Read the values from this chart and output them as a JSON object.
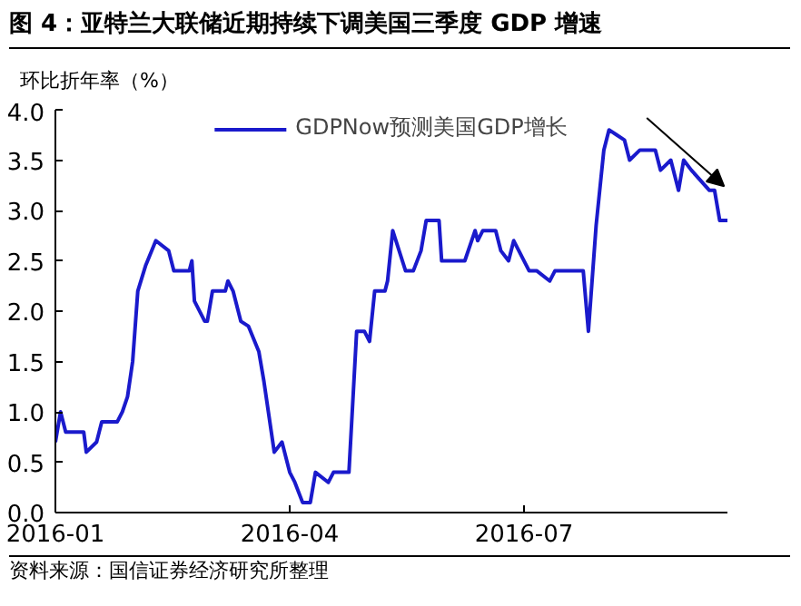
{
  "chart_data": {
    "type": "line",
    "title": "图 4：亚特兰大联储近期持续下调美国三季度 GDP 增速",
    "ylabel": "环比折年率（%）",
    "annotations": [
      "资料来源：国信证券经济研究所整理"
    ],
    "x": [
      "2016-01-01",
      "2016-01-03",
      "2016-01-05",
      "2016-01-12",
      "2016-01-13",
      "2016-01-17",
      "2016-01-19",
      "2016-01-25",
      "2016-01-27",
      "2016-01-29",
      "2016-01-31",
      "2016-02-02",
      "2016-02-05",
      "2016-02-09",
      "2016-02-14",
      "2016-02-16",
      "2016-02-22",
      "2016-02-23",
      "2016-02-24",
      "2016-02-28",
      "2016-02-29",
      "2016-03-02",
      "2016-03-07",
      "2016-03-08",
      "2016-03-10",
      "2016-03-13",
      "2016-03-16",
      "2016-03-20",
      "2016-03-22",
      "2016-03-26",
      "2016-03-29",
      "2016-04-01",
      "2016-04-03",
      "2016-04-06",
      "2016-04-09",
      "2016-04-11",
      "2016-04-16",
      "2016-04-18",
      "2016-04-24",
      "2016-04-27",
      "2016-04-30",
      "2016-05-02",
      "2016-05-04",
      "2016-05-08",
      "2016-05-09",
      "2016-05-11",
      "2016-05-16",
      "2016-05-19",
      "2016-05-22",
      "2016-05-24",
      "2016-05-29",
      "2016-05-30",
      "2016-06-08",
      "2016-06-12",
      "2016-06-13",
      "2016-06-15",
      "2016-06-20",
      "2016-06-22",
      "2016-06-25",
      "2016-06-27",
      "2016-07-03",
      "2016-07-06",
      "2016-07-11",
      "2016-07-13",
      "2016-07-24",
      "2016-07-26",
      "2016-07-29",
      "2016-08-01",
      "2016-08-03",
      "2016-08-06",
      "2016-08-09",
      "2016-08-11",
      "2016-08-15",
      "2016-08-21",
      "2016-08-23",
      "2016-08-27",
      "2016-08-30",
      "2016-09-01",
      "2016-09-04",
      "2016-09-11",
      "2016-09-13",
      "2016-09-15",
      "2016-09-18"
    ],
    "series": [
      {
        "name": "GDPNow预测美国GDP增长",
        "color": "#1a1acc",
        "values": [
          0.7,
          1.0,
          0.8,
          0.8,
          0.6,
          0.7,
          0.9,
          0.9,
          1.0,
          1.15,
          1.5,
          2.2,
          2.45,
          2.7,
          2.6,
          2.4,
          2.4,
          2.5,
          2.1,
          1.9,
          1.9,
          2.2,
          2.2,
          2.3,
          2.2,
          1.9,
          1.85,
          1.6,
          1.3,
          0.6,
          0.7,
          0.4,
          0.3,
          0.1,
          0.1,
          0.4,
          0.3,
          0.4,
          0.4,
          1.8,
          1.8,
          1.7,
          2.2,
          2.2,
          2.3,
          2.8,
          2.4,
          2.4,
          2.6,
          2.9,
          2.9,
          2.5,
          2.5,
          2.8,
          2.7,
          2.8,
          2.8,
          2.6,
          2.5,
          2.7,
          2.4,
          2.4,
          2.3,
          2.4,
          2.4,
          1.8,
          2.85,
          3.6,
          3.8,
          3.75,
          3.7,
          3.5,
          3.6,
          3.6,
          3.4,
          3.5,
          3.2,
          3.5,
          3.4,
          3.2,
          3.2,
          2.9,
          2.9
        ]
      }
    ],
    "xlim": [
      "2016-01-01",
      "2016-09-18"
    ],
    "xticks": [
      "2016-01",
      "2016-04",
      "2016-07"
    ],
    "ylim": [
      0,
      4
    ],
    "yticks": [
      {
        "value": 0,
        "label": "0.0"
      },
      0.5,
      {
        "value": 1,
        "label": "1.0"
      },
      1.5,
      {
        "value": 2,
        "label": "2.0"
      },
      2.5,
      {
        "value": 3,
        "label": "3.0"
      },
      3.5,
      {
        "value": 4,
        "label": "4.0"
      }
    ],
    "grid": false,
    "legend": "top",
    "marker": "none",
    "line_style": "solid"
  }
}
